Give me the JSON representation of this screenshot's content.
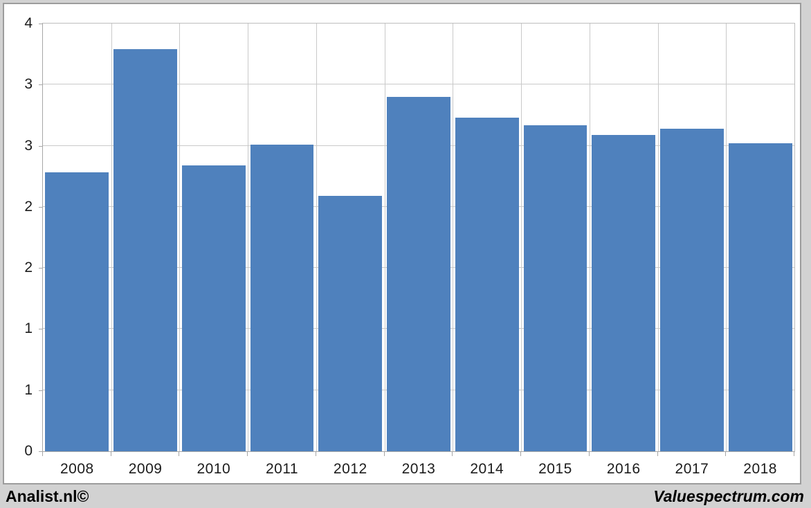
{
  "chart_data": {
    "type": "bar",
    "title": "",
    "categories": [
      "2008",
      "2009",
      "2010",
      "2011",
      "2012",
      "2013",
      "2014",
      "2015",
      "2016",
      "2017",
      "2018"
    ],
    "values": [
      2.28,
      3.29,
      2.34,
      2.51,
      2.09,
      2.9,
      2.73,
      2.67,
      2.59,
      2.64,
      2.52
    ],
    "ylim": [
      0,
      3.5
    ],
    "y_major_unit": 0.5,
    "y_ticks": [
      {
        "value": 0.0,
        "label": "0"
      },
      {
        "value": 0.5,
        "label": "1"
      },
      {
        "value": 1.0,
        "label": "1"
      },
      {
        "value": 1.5,
        "label": "2"
      },
      {
        "value": 2.0,
        "label": "2"
      },
      {
        "value": 2.5,
        "label": "3"
      },
      {
        "value": 3.0,
        "label": "3"
      },
      {
        "value": 3.5,
        "label": "4"
      }
    ],
    "grid": "horizontal and vertical gridlines on",
    "legend": "none",
    "bar_color": "#4f81bd"
  },
  "footer": {
    "left_text": "Analist.nl©",
    "right_text": "Valuespectrum.com"
  },
  "colors": {
    "bar": "#4f81bd",
    "gridline": "#c9c9c9",
    "axis": "#a6a6a6",
    "frame_background": "#d2d2d2",
    "chart_background": "#ffffff",
    "chart_border": "#9c9c9c",
    "label_text": "#1c1c1c"
  }
}
